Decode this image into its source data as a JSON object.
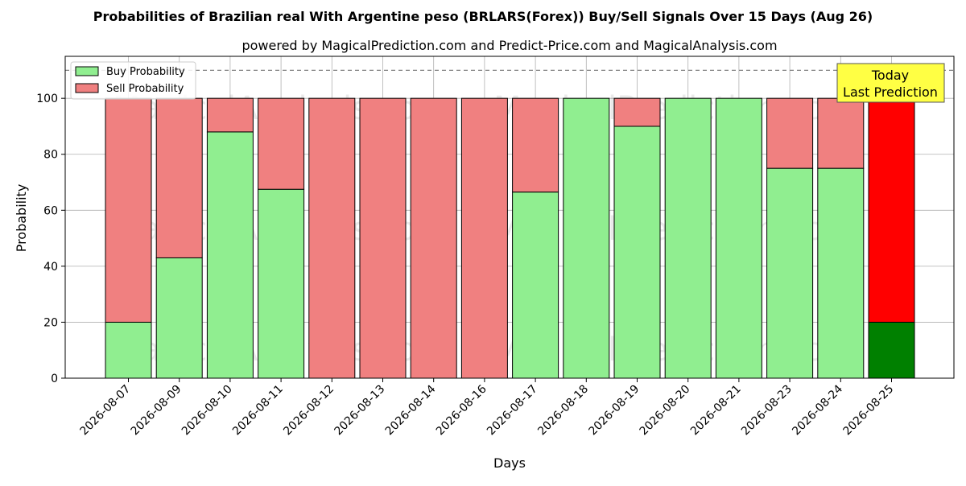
{
  "chart_data": {
    "type": "bar",
    "stacked": true,
    "title": "Probabilities of Brazilian real With Argentine peso (BRLARS(Forex)) Buy/Sell Signals Over 15 Days (Aug 26)",
    "subtitle": "powered by MagicalPrediction.com and Predict-Price.com and MagicalAnalysis.com",
    "xlabel": "Days",
    "ylabel": "Probability",
    "ylim": [
      0,
      115
    ],
    "yticks": [
      0,
      20,
      40,
      60,
      80,
      100
    ],
    "grid": true,
    "legend_position": "top-left",
    "reference_line": 110,
    "categories": [
      "2026-08-07",
      "2026-08-09",
      "2026-08-10",
      "2026-08-11",
      "2026-08-12",
      "2026-08-13",
      "2026-08-14",
      "2026-08-16",
      "2026-08-17",
      "2026-08-18",
      "2026-08-19",
      "2026-08-20",
      "2026-08-21",
      "2026-08-23",
      "2026-08-24",
      "2026-08-25"
    ],
    "series": [
      {
        "name": "Buy Probability",
        "color": "#90ee90",
        "values": [
          20,
          43,
          88,
          67.5,
          0,
          0,
          0,
          0,
          66.5,
          100,
          90,
          100,
          100,
          75,
          75,
          20
        ]
      },
      {
        "name": "Sell Probability",
        "color": "#f08080",
        "values": [
          80,
          57,
          12,
          32.5,
          100,
          100,
          100,
          100,
          33.5,
          0,
          10,
          0,
          0,
          25,
          25,
          80
        ]
      }
    ],
    "highlight": {
      "category": "2026-08-25",
      "buy_color": "#008000",
      "sell_color": "#ff0000",
      "annotation": [
        "Today",
        "Last Prediction"
      ],
      "annotation_bg": "#ffff44"
    },
    "watermarks": [
      "MagicalAnalysis.com",
      "MagicalPrediction.com"
    ]
  }
}
